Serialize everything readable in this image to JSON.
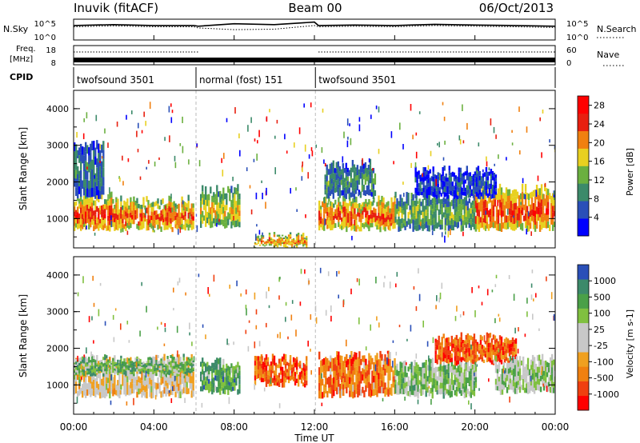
{
  "header": {
    "station": "Inuvik (fitACF)",
    "beam": "Beam 00",
    "date": "06/Oct/2013"
  },
  "chart_data": [
    {
      "type": "line",
      "panel": "noise",
      "left_label": "N.Sky",
      "right_label": "N.Search",
      "left_ticks": [
        "10^5",
        "10^0"
      ],
      "right_ticks": [
        "10^5",
        "10^0"
      ],
      "scale": "log",
      "ylim": [
        1,
        100000
      ],
      "x_hours": [
        0,
        2,
        4,
        6,
        6.2,
        8,
        10,
        12,
        12.2,
        14,
        16,
        18,
        20,
        22,
        24
      ],
      "sky": [
        3000,
        5000,
        3000,
        3000,
        2000,
        8000,
        5000,
        20000,
        3000,
        4000,
        3000,
        6000,
        4000,
        3000,
        2000
      ],
      "search": [
        1500,
        2500,
        1500,
        1500,
        800,
        300,
        400,
        3000,
        1500,
        2000,
        1500,
        3000,
        2000,
        1500,
        1000
      ]
    },
    {
      "type": "line",
      "panel": "frequency",
      "left_label": "Freq.",
      "left_unit": "[MHz]",
      "right_label": "Nave",
      "left_ticks": [
        "18",
        "8"
      ],
      "right_ticks": [
        "60",
        "0"
      ],
      "ylim_freq": [
        8,
        18
      ],
      "ylim_nave": [
        0,
        60
      ],
      "x_hours": [
        0,
        6,
        6.2,
        12,
        12.2,
        24
      ],
      "freq": [
        10.5,
        10.5,
        10.5,
        10.5,
        10.5,
        10.5
      ],
      "nave": [
        40,
        40,
        12,
        12,
        40,
        40
      ]
    },
    {
      "type": "table",
      "panel": "cpid",
      "label": "CPID",
      "segments": [
        {
          "start": 0,
          "end": 6.1,
          "name": "twofsound 3501"
        },
        {
          "start": 6.1,
          "end": 12.05,
          "name": "normal (fost) 151"
        },
        {
          "start": 12.05,
          "end": 24,
          "name": "twofsound 3501"
        }
      ]
    },
    {
      "type": "heatmap",
      "panel": "power",
      "ylabel": "Slant Range [km]",
      "yticks": [
        1000,
        2000,
        3000,
        4000
      ],
      "ylim": [
        200,
        4500
      ],
      "colorbar_label": "Power [dB]",
      "colorbar_ticks": [
        28,
        24,
        20,
        16,
        12,
        8,
        4
      ],
      "colorbar_range": [
        0,
        30
      ],
      "colors": [
        "#0000ff",
        "#2a4fb8",
        "#3c8a6a",
        "#6bb040",
        "#e8d020",
        "#f08010",
        "#e82010",
        "#ff0000"
      ],
      "bands": [
        {
          "x0": 0,
          "x1": 2,
          "y0": 700,
          "y1": 1600,
          "level": 0.85
        },
        {
          "x0": 2,
          "x1": 6,
          "y0": 700,
          "y1": 1500,
          "level": 0.8
        },
        {
          "x0": 6.3,
          "x1": 8.3,
          "y0": 800,
          "y1": 1800,
          "level": 0.6
        },
        {
          "x0": 9,
          "x1": 11.6,
          "y0": 250,
          "y1": 500,
          "level": 0.75
        },
        {
          "x0": 12.2,
          "x1": 16,
          "y0": 700,
          "y1": 1500,
          "level": 0.8
        },
        {
          "x0": 16,
          "x1": 20,
          "y0": 700,
          "y1": 1600,
          "level": 0.45
        },
        {
          "x0": 20,
          "x1": 24,
          "y0": 700,
          "y1": 1800,
          "level": 0.85
        },
        {
          "x0": 0,
          "x1": 1.5,
          "y0": 1600,
          "y1": 3000,
          "level": 0.3
        },
        {
          "x0": 12.5,
          "x1": 15,
          "y0": 1600,
          "y1": 2500,
          "level": 0.35
        },
        {
          "x0": 17,
          "x1": 21,
          "y0": 1600,
          "y1": 2300,
          "level": 0.2
        }
      ]
    },
    {
      "type": "heatmap",
      "panel": "velocity",
      "ylabel": "Slant Range [km]",
      "yticks": [
        1000,
        2000,
        3000,
        4000
      ],
      "ylim": [
        200,
        4500
      ],
      "colorbar_label": "Velocity [m s-1]",
      "colorbar_ticks": [
        1000,
        500,
        100,
        25,
        -25,
        -100,
        -500,
        -1000
      ],
      "colorbar_range": [
        -1000,
        1000
      ],
      "colors": [
        "#ff0000",
        "#f04010",
        "#f08010",
        "#f0a020",
        "#c8c8c8",
        "#c8c8c8",
        "#80c040",
        "#4aa048",
        "#3c8a6a",
        "#2a4fb8"
      ],
      "bands": [
        {
          "x0": 0,
          "x1": 6,
          "y0": 700,
          "y1": 1700,
          "level": 0.45
        },
        {
          "x0": 0,
          "x1": 6,
          "y0": 1300,
          "y1": 1700,
          "level": 0.7
        },
        {
          "x0": 6.3,
          "x1": 8.3,
          "y0": 800,
          "y1": 1600,
          "level": 0.75
        },
        {
          "x0": 9,
          "x1": 11.6,
          "y0": 1000,
          "y1": 1700,
          "level": 0.2
        },
        {
          "x0": 12.2,
          "x1": 16,
          "y0": 700,
          "y1": 1800,
          "level": 0.25
        },
        {
          "x0": 16,
          "x1": 20,
          "y0": 700,
          "y1": 1600,
          "level": 0.65
        },
        {
          "x0": 18,
          "x1": 22,
          "y0": 1600,
          "y1": 2300,
          "level": 0.2
        },
        {
          "x0": 21,
          "x1": 24,
          "y0": 800,
          "y1": 1700,
          "level": 0.6
        }
      ]
    }
  ],
  "xaxis": {
    "ticks": [
      "00:00",
      "04:00",
      "08:00",
      "12:00",
      "16:00",
      "20:00",
      "00:00"
    ],
    "label": "Time UT"
  }
}
